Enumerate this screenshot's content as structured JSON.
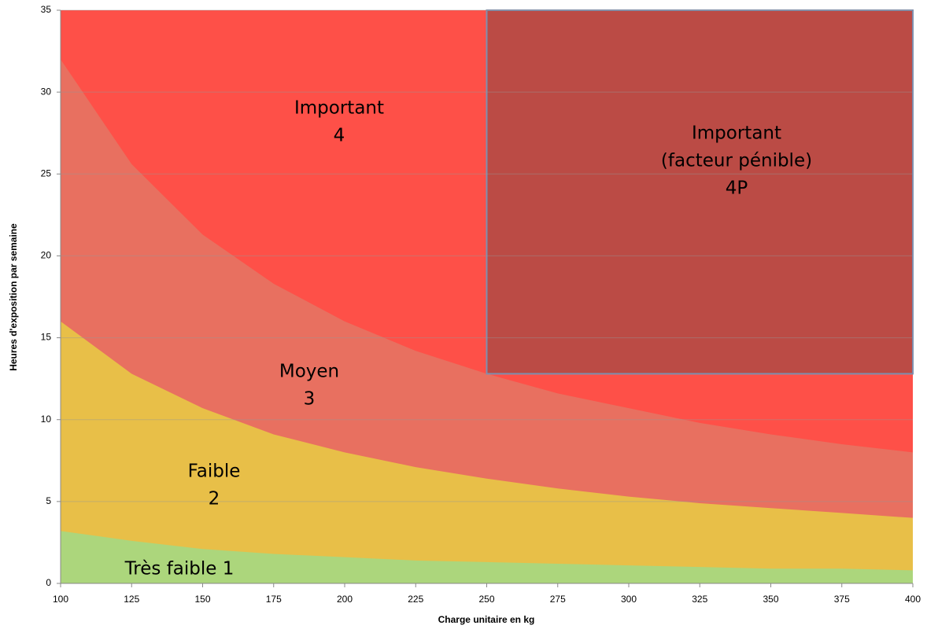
{
  "chart_data": {
    "type": "area",
    "x_label": "Charge unitaire en kg",
    "y_label": "Heures d'exposition par semaine",
    "x": [
      100,
      125,
      150,
      175,
      200,
      225,
      250,
      275,
      300,
      325,
      350,
      375,
      400
    ],
    "xlim": [
      100,
      400
    ],
    "xticks": [
      100,
      125,
      150,
      175,
      200,
      225,
      250,
      275,
      300,
      325,
      350,
      375,
      400
    ],
    "ylim": [
      0,
      35
    ],
    "yticks": [
      0,
      5,
      10,
      15,
      20,
      25,
      30,
      35
    ],
    "grid": true,
    "background_color": "#fe5048",
    "series": [
      {
        "color": "#e87060",
        "values": [
          32,
          25.6,
          21.3,
          18.3,
          16,
          14.2,
          12.8,
          11.6,
          10.7,
          9.8,
          9.1,
          8.5,
          8
        ]
      },
      {
        "color": "#e8bf48",
        "values": [
          16,
          12.8,
          10.7,
          9.1,
          8,
          7.1,
          6.4,
          5.8,
          5.3,
          4.9,
          4.6,
          4.3,
          4
        ]
      },
      {
        "color": "#acd67c",
        "values": [
          3.2,
          2.6,
          2.1,
          1.8,
          1.6,
          1.4,
          1.3,
          1.2,
          1.1,
          1,
          0.9,
          0.9,
          0.8
        ]
      }
    ],
    "region": {
      "x": [
        250,
        400
      ],
      "y": [
        12.8,
        35
      ],
      "color": "#bb4b45",
      "border": "#7f8fae"
    },
    "annotations": [
      {
        "lines": [
          "Important",
          "4"
        ]
      },
      {
        "lines": [
          "Important",
          "(facteur pénible)",
          "4P"
        ]
      },
      {
        "lines": [
          "Moyen",
          "3"
        ]
      },
      {
        "lines": [
          "Faible",
          "2"
        ]
      },
      {
        "lines": [
          "Très faible 1"
        ]
      }
    ]
  }
}
